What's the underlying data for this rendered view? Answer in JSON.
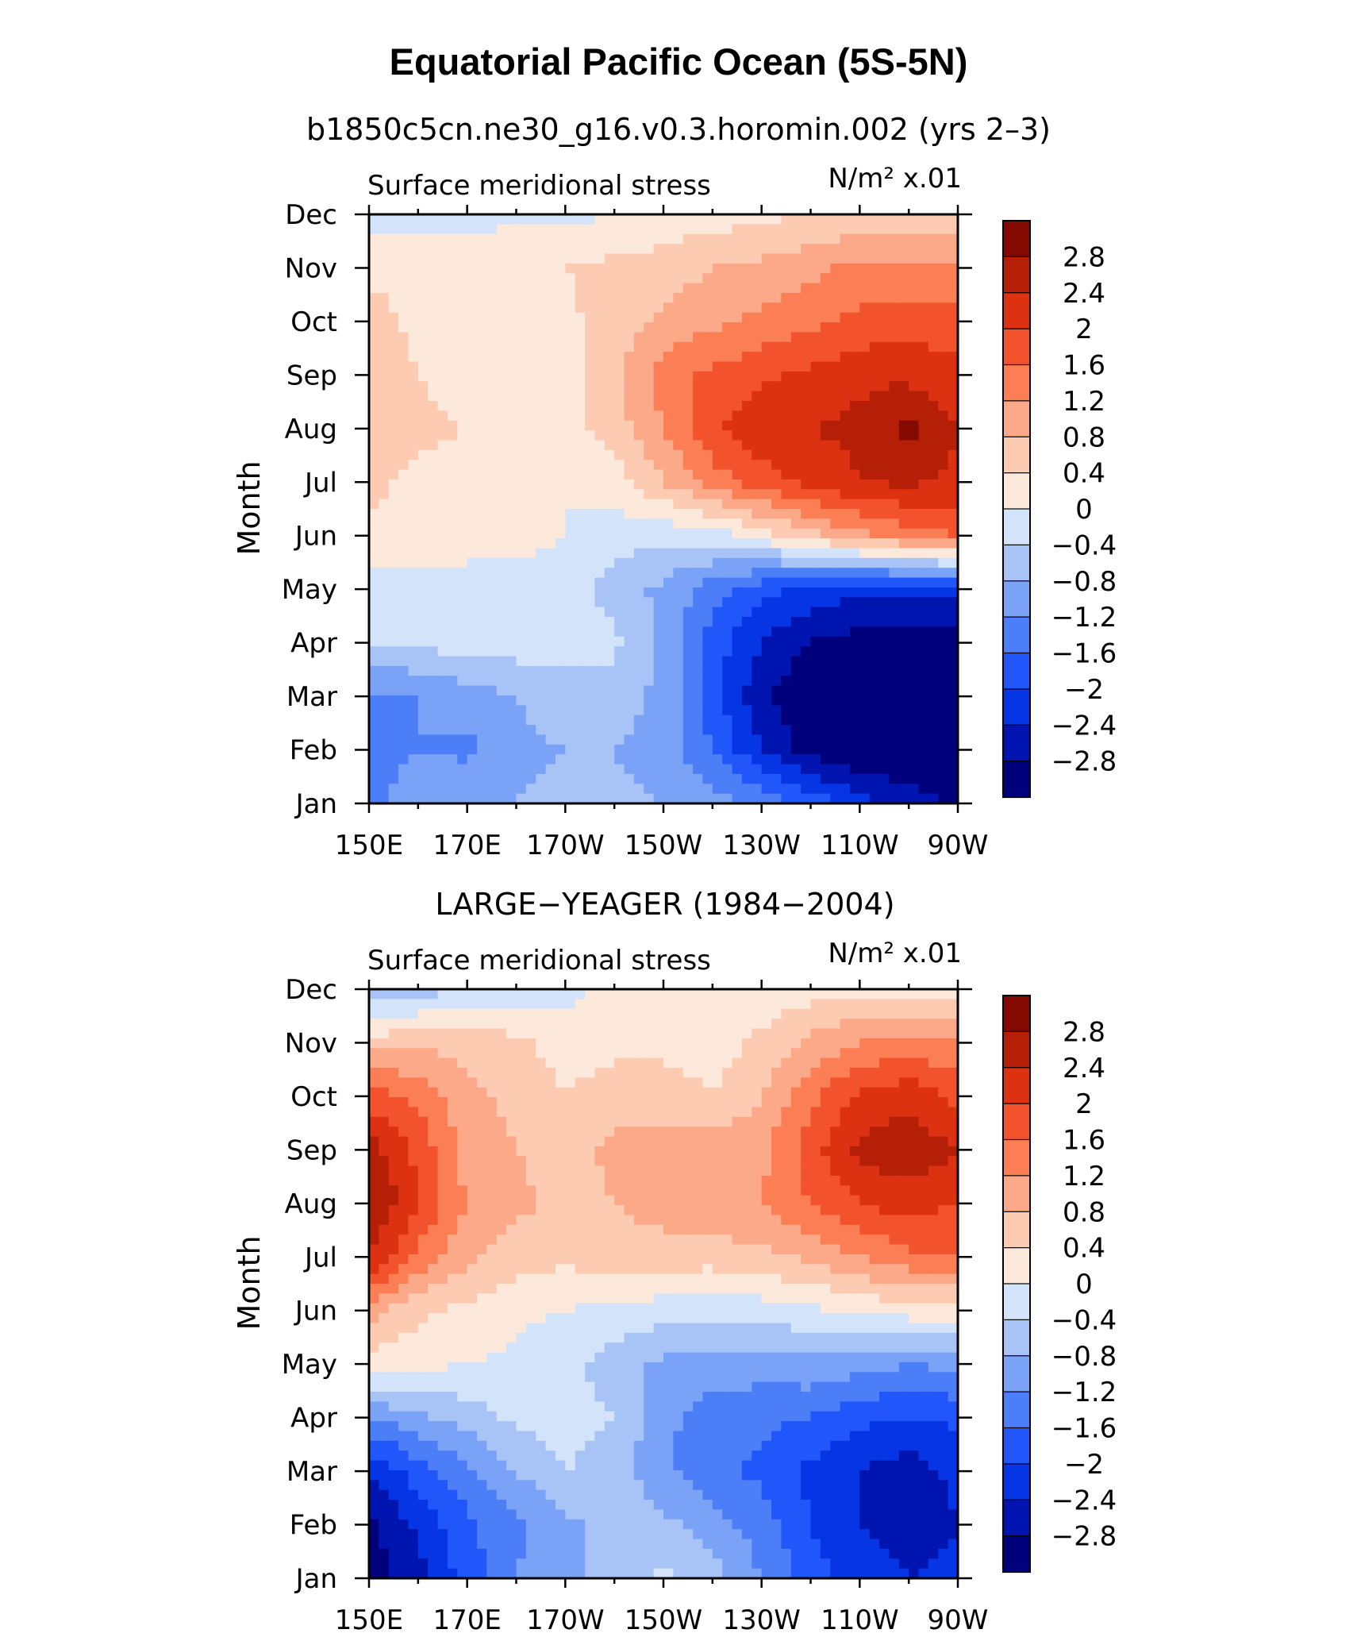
{
  "figure": {
    "title": "Equatorial Pacific Ocean (5S-5N)"
  },
  "palette": [
    "#00007d",
    "#0015b0",
    "#0535e4",
    "#2056fa",
    "#4b7ef7",
    "#7aa3f7",
    "#a8c4f7",
    "#d3e4fa",
    "#fde8dc",
    "#fdcab2",
    "#fca98a",
    "#fb7e55",
    "#f3532c",
    "#dc3212",
    "#b61f07",
    "#840900"
  ],
  "chart_data": [
    {
      "type": "heatmap",
      "subtitle": "b1850c5cn.ne30_g16.v0.3.horomin.002 (yrs 2–3)",
      "left_label": "Surface meridional stress",
      "units": "N/m² x.01",
      "ylabel": "Month",
      "xlabel": "",
      "x_tick_labels": [
        "150E",
        "170E",
        "170W",
        "150W",
        "130W",
        "110W",
        "90W"
      ],
      "y_tick_labels": [
        "Jan",
        "Feb",
        "Mar",
        "Apr",
        "May",
        "Jun",
        "Jul",
        "Aug",
        "Sep",
        "Oct",
        "Nov",
        "Dec"
      ],
      "x_range": [
        150,
        270
      ],
      "x_units": "degrees east longitude",
      "y_range": [
        1,
        12
      ],
      "colorbar_levels": [
        -2.8,
        -2.4,
        -2,
        -1.6,
        -1.2,
        -0.8,
        -0.4,
        0,
        0.4,
        0.8,
        1.2,
        1.6,
        2,
        2.4,
        2.8
      ],
      "colorbar_labels": [
        "2.8",
        "2.4",
        "2",
        "1.6",
        "1.2",
        "0.8",
        "0.4",
        "0",
        "−0.4",
        "−0.8",
        "−1.2",
        "−1.6",
        "−2",
        "−2.4",
        "−2.8"
      ],
      "grid_lon": [
        150,
        160,
        170,
        180,
        190,
        200,
        210,
        220,
        230,
        240,
        250,
        260,
        270
      ],
      "grid_month": [
        "Jan",
        "Feb",
        "Mar",
        "Apr",
        "May",
        "Jun",
        "Jul",
        "Aug",
        "Sep",
        "Oct",
        "Nov",
        "Dec"
      ],
      "values": [
        [
          -1.3,
          -0.9,
          -0.8,
          -0.8,
          -0.7,
          -0.7,
          -0.8,
          -1.0,
          -1.3,
          -1.7,
          -2.2,
          -2.6,
          -2.9
        ],
        [
          -1.5,
          -1.2,
          -1.3,
          -0.9,
          -0.8,
          -0.8,
          -1.0,
          -1.6,
          -2.4,
          -3.0,
          -3.2,
          -3.2,
          -3.1
        ],
        [
          -1.3,
          -1.2,
          -1.0,
          -0.8,
          -0.6,
          -0.6,
          -0.9,
          -1.8,
          -2.7,
          -3.2,
          -3.3,
          -3.3,
          -3.2
        ],
        [
          -0.4,
          -0.3,
          -0.2,
          -0.2,
          -0.2,
          -0.3,
          -0.9,
          -1.8,
          -2.4,
          -2.8,
          -3.0,
          -3.0,
          -3.0
        ],
        [
          -0.2,
          -0.1,
          -0.1,
          -0.1,
          -0.2,
          -0.6,
          -0.9,
          -1.4,
          -1.9,
          -2.1,
          -2.3,
          -2.3,
          -2.2
        ],
        [
          0.3,
          0.2,
          0.1,
          0.1,
          0.0,
          -0.2,
          -0.3,
          -0.2,
          0.2,
          0.7,
          1.1,
          1.4,
          1.6
        ],
        [
          0.5,
          0.3,
          0.2,
          0.1,
          0.0,
          0.2,
          0.8,
          1.4,
          1.8,
          2.1,
          2.4,
          2.5,
          2.3
        ],
        [
          0.8,
          0.5,
          0.4,
          0.1,
          0.2,
          0.6,
          1.2,
          1.9,
          2.3,
          2.4,
          2.5,
          2.9,
          2.4
        ],
        [
          0.6,
          0.4,
          0.2,
          0.1,
          0.2,
          0.7,
          1.4,
          1.7,
          1.9,
          2.1,
          2.3,
          2.3,
          2.1
        ],
        [
          0.6,
          0.3,
          0.2,
          0.2,
          0.3,
          0.6,
          0.9,
          1.1,
          1.3,
          1.5,
          1.7,
          1.8,
          1.8
        ],
        [
          0.3,
          0.2,
          0.2,
          0.3,
          0.4,
          0.5,
          0.6,
          0.8,
          0.9,
          1.1,
          1.3,
          1.3,
          1.3
        ],
        [
          -0.2,
          -0.1,
          -0.1,
          -0.1,
          -0.1,
          0.0,
          0.1,
          0.2,
          0.3,
          0.4,
          0.5,
          0.6,
          0.6
        ]
      ]
    },
    {
      "type": "heatmap",
      "subtitle": "LARGE−YEAGER (1984−2004)",
      "left_label": "Surface meridional stress",
      "units": "N/m² x.01",
      "ylabel": "Month",
      "xlabel": "",
      "x_tick_labels": [
        "150E",
        "170E",
        "170W",
        "150W",
        "130W",
        "110W",
        "90W"
      ],
      "y_tick_labels": [
        "Jan",
        "Feb",
        "Mar",
        "Apr",
        "May",
        "Jun",
        "Jul",
        "Aug",
        "Sep",
        "Oct",
        "Nov",
        "Dec"
      ],
      "x_range": [
        150,
        270
      ],
      "x_units": "degrees east longitude",
      "y_range": [
        1,
        12
      ],
      "colorbar_levels": [
        -2.8,
        -2.4,
        -2,
        -1.6,
        -1.2,
        -0.8,
        -0.4,
        0,
        0.4,
        0.8,
        1.2,
        1.6,
        2,
        2.4,
        2.8
      ],
      "colorbar_labels": [
        "2.8",
        "2.4",
        "2",
        "1.6",
        "1.2",
        "0.8",
        "0.4",
        "0",
        "−0.4",
        "−0.8",
        "−1.2",
        "−1.6",
        "−2",
        "−2.4",
        "−2.8"
      ],
      "grid_lon": [
        150,
        160,
        170,
        180,
        190,
        200,
        210,
        220,
        230,
        240,
        250,
        260,
        270
      ],
      "grid_month": [
        "Jan",
        "Feb",
        "Mar",
        "Apr",
        "May",
        "Jun",
        "Jul",
        "Aug",
        "Sep",
        "Oct",
        "Nov",
        "Dec"
      ],
      "values": [
        [
          -3.0,
          -2.6,
          -1.8,
          -1.2,
          -0.9,
          -0.6,
          -0.3,
          -0.6,
          -1.2,
          -1.8,
          -2.2,
          -2.4,
          -2.3
        ],
        [
          -2.9,
          -2.3,
          -1.7,
          -1.3,
          -0.9,
          -0.6,
          -0.7,
          -1.0,
          -1.4,
          -2.0,
          -2.4,
          -2.6,
          -2.4
        ],
        [
          -2.4,
          -1.8,
          -1.3,
          -0.8,
          -0.4,
          -0.6,
          -1.1,
          -1.5,
          -1.7,
          -2.1,
          -2.4,
          -2.6,
          -2.3
        ],
        [
          -1.2,
          -0.9,
          -0.6,
          -0.3,
          -0.2,
          -0.4,
          -1.1,
          -1.4,
          -1.5,
          -1.6,
          -1.9,
          -2.0,
          -1.9
        ],
        [
          0.2,
          0.1,
          0.0,
          -0.1,
          -0.3,
          -0.6,
          -0.9,
          -1.0,
          -1.0,
          -0.9,
          -1.0,
          -1.2,
          -1.1
        ],
        [
          1.0,
          0.5,
          0.3,
          0.1,
          0.0,
          -0.1,
          -0.2,
          -0.3,
          -0.2,
          -0.1,
          0.1,
          0.2,
          0.2
        ],
        [
          2.4,
          1.5,
          0.9,
          0.6,
          0.5,
          0.6,
          0.6,
          0.6,
          0.7,
          0.9,
          1.2,
          1.5,
          1.6
        ],
        [
          2.9,
          2.0,
          1.2,
          0.9,
          0.7,
          0.8,
          1.0,
          1.1,
          1.2,
          1.6,
          2.0,
          2.2,
          2.0
        ],
        [
          2.6,
          1.9,
          1.0,
          0.8,
          0.6,
          0.9,
          1.0,
          1.0,
          1.1,
          1.8,
          2.5,
          2.7,
          2.4
        ],
        [
          1.8,
          1.5,
          0.9,
          0.7,
          0.4,
          0.6,
          0.6,
          0.4,
          0.8,
          1.5,
          2.1,
          2.3,
          1.9
        ],
        [
          0.6,
          0.7,
          0.7,
          0.5,
          0.2,
          0.3,
          0.3,
          0.2,
          0.5,
          0.9,
          1.2,
          1.3,
          1.2
        ],
        [
          -0.8,
          -0.6,
          -0.4,
          -0.3,
          -0.1,
          0.1,
          0.2,
          0.2,
          0.1,
          0.2,
          0.3,
          0.1,
          0.2
        ]
      ]
    }
  ]
}
